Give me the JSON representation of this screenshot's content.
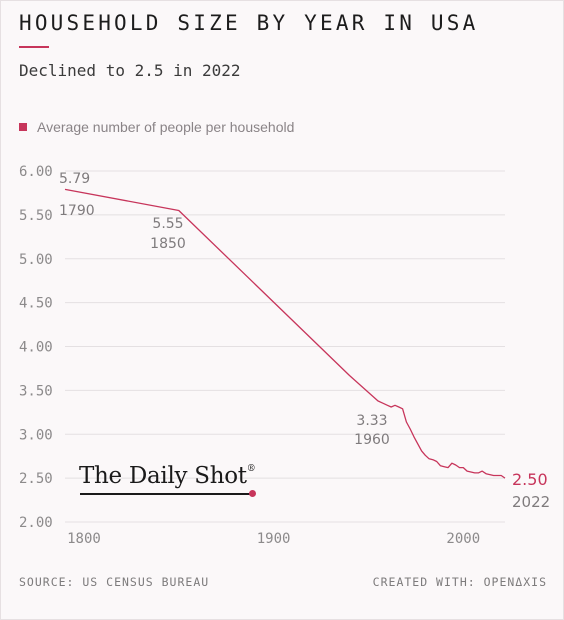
{
  "header": {
    "title": "HOUSEHOLD SIZE BY YEAR IN USA",
    "subtitle": "Declined to 2.5 in 2022"
  },
  "legend": {
    "label": "Average number of people per household"
  },
  "colors": {
    "accent": "#c7355b",
    "grid": "#e4e0e2",
    "tick_text": "#8c8a8b"
  },
  "chart_data": {
    "type": "line",
    "title": "HOUSEHOLD SIZE BY YEAR IN USA",
    "subtitle": "Declined to 2.5 in 2022",
    "xlabel": "",
    "ylabel": "",
    "xlim": [
      1790,
      2022
    ],
    "ylim": [
      2.0,
      6.0
    ],
    "grid": "horizontal",
    "legend_position": "top-left",
    "x_ticks": [
      "1800",
      "1900",
      "2000"
    ],
    "y_ticks": [
      "2.00",
      "2.50",
      "3.00",
      "3.50",
      "4.00",
      "4.50",
      "5.00",
      "5.50",
      "6.00"
    ],
    "series": [
      {
        "name": "Average number of people per household",
        "x": [
          1790,
          1850,
          1940,
          1955,
          1960,
          1962,
          1964,
          1966,
          1968,
          1970,
          1972,
          1974,
          1976,
          1978,
          1980,
          1982,
          1984,
          1986,
          1988,
          1990,
          1992,
          1994,
          1996,
          1998,
          2000,
          2002,
          2004,
          2006,
          2008,
          2010,
          2012,
          2014,
          2016,
          2018,
          2020,
          2022
        ],
        "y": [
          5.79,
          5.55,
          3.67,
          3.38,
          3.33,
          3.31,
          3.33,
          3.31,
          3.29,
          3.14,
          3.06,
          2.97,
          2.89,
          2.81,
          2.76,
          2.72,
          2.71,
          2.69,
          2.64,
          2.63,
          2.62,
          2.67,
          2.65,
          2.62,
          2.62,
          2.58,
          2.57,
          2.56,
          2.56,
          2.58,
          2.55,
          2.54,
          2.53,
          2.53,
          2.53,
          2.5
        ]
      }
    ],
    "annotations": [
      {
        "year": "1790",
        "value": "5.79"
      },
      {
        "year": "1850",
        "value": "5.55"
      },
      {
        "year": "1960",
        "value": "3.33"
      },
      {
        "year": "2022",
        "value": "2.50"
      }
    ]
  },
  "branding": {
    "logo_text": "The Daily Shot",
    "registered_mark": "®"
  },
  "footer": {
    "source": "SOURCE: US CENSUS BUREAU",
    "credit": "CREATED WITH: OPENΔXIS"
  }
}
